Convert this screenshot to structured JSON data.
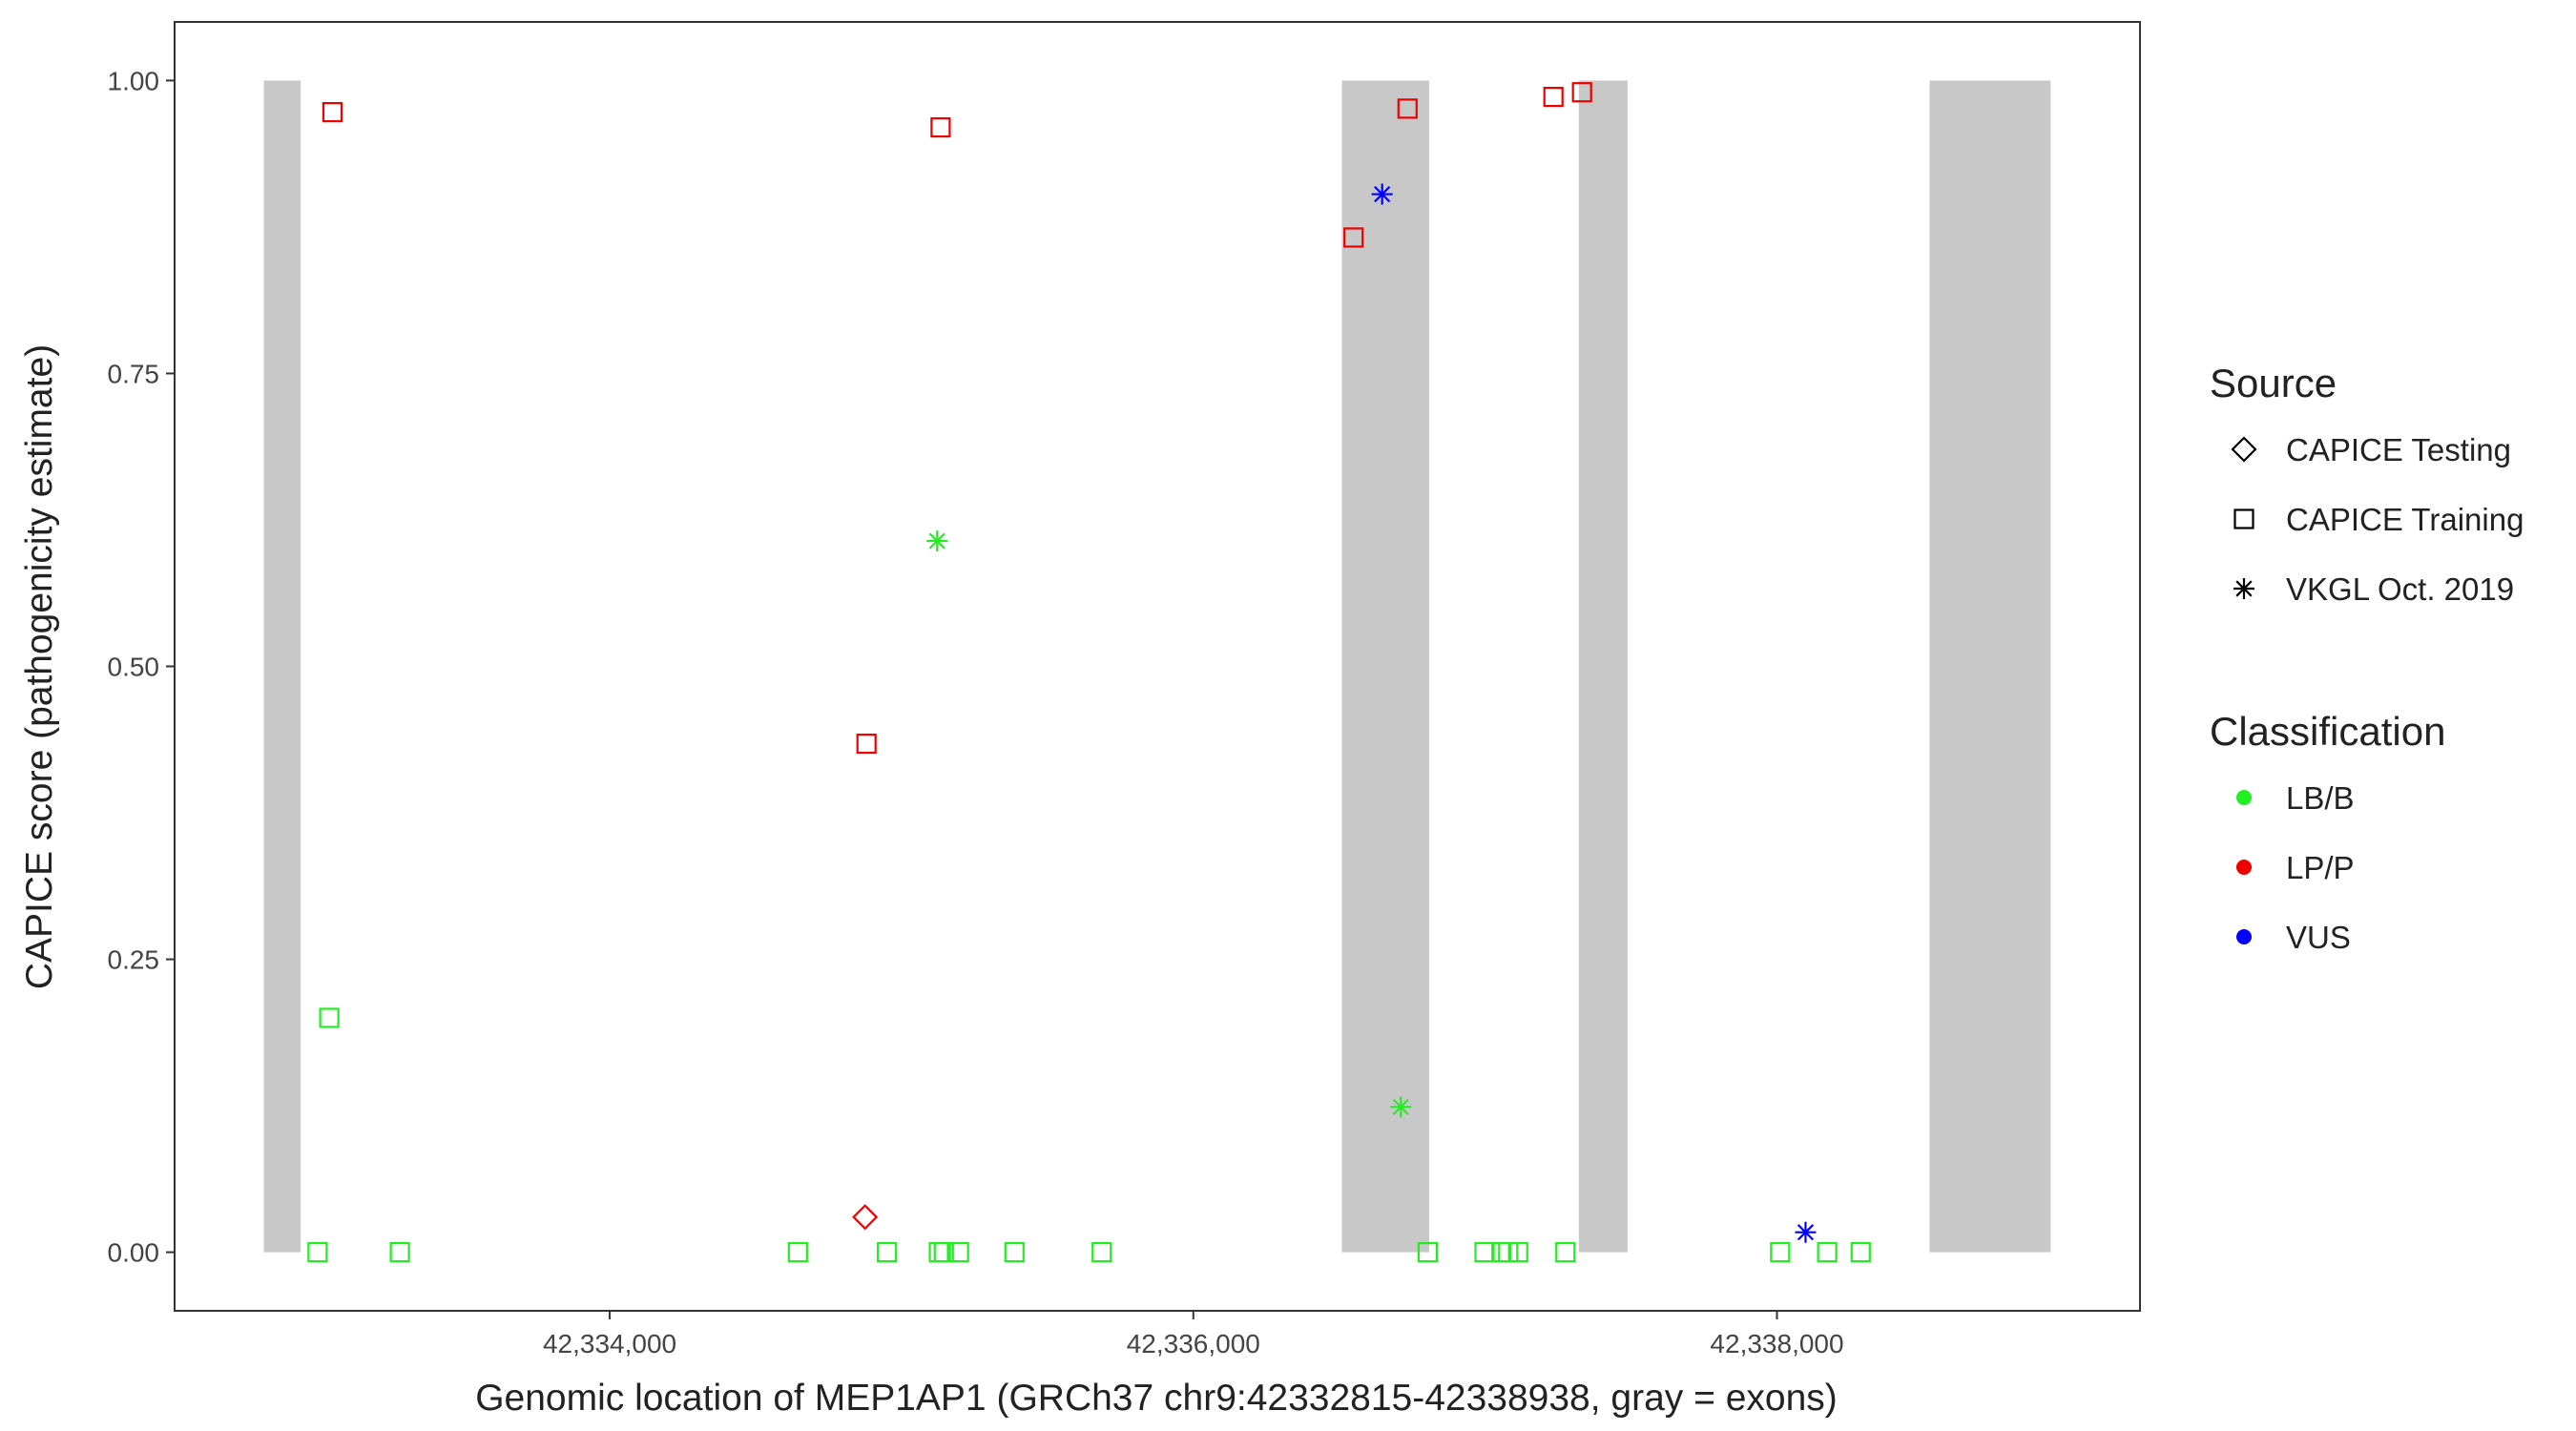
{
  "chart_data": {
    "type": "scatter",
    "x_label": "Genomic location of MEP1AP1 (GRCh37 chr9:42332815-42338938, gray = exons)",
    "y_label": "CAPICE score (pathogenicity estimate)",
    "xlim": [
      42332509,
      42339244
    ],
    "ylim": [
      -0.05,
      1.05
    ],
    "xticks": [
      {
        "value": 42334000,
        "label": "42,334,000"
      },
      {
        "value": 42336000,
        "label": "42,336,000"
      },
      {
        "value": 42338000,
        "label": "42,338,000"
      }
    ],
    "yticks": [
      {
        "value": 0,
        "label": "0.00"
      },
      {
        "value": 0.25,
        "label": "0.25"
      },
      {
        "value": 0.5,
        "label": "0.50"
      },
      {
        "value": 0.75,
        "label": "0.75"
      },
      {
        "value": 1,
        "label": "1.00"
      }
    ],
    "grid": false,
    "exon_color": "#c8c8c8",
    "exon_ylim": [
      0,
      1
    ],
    "exons": [
      {
        "start": 42332815,
        "end": 42332941
      },
      {
        "start": 42336509,
        "end": 42336808
      },
      {
        "start": 42337321,
        "end": 42337488
      },
      {
        "start": 42338523,
        "end": 42338938
      }
    ],
    "source_title": "Source",
    "sources": [
      {
        "name": "CAPICE Testing",
        "shape": "diamond"
      },
      {
        "name": "CAPICE Training",
        "shape": "square"
      },
      {
        "name": "VKGL Oct. 2019",
        "shape": "asterisk"
      }
    ],
    "classification_title": "Classification",
    "classifications": [
      {
        "name": "LB/B",
        "color": "#22ee22"
      },
      {
        "name": "LP/P",
        "color": "#ee0000"
      },
      {
        "name": "VUS",
        "color": "#0000ff"
      }
    ],
    "series": [
      {
        "source": "CAPICE Training",
        "classification": "LP/P",
        "x": [
          42333050,
          42335134,
          42336734,
          42337234,
          42337332,
          42336549,
          42334880
        ],
        "values": [
          0.973,
          0.96,
          0.976,
          0.986,
          0.99,
          0.866,
          0.434
        ]
      },
      {
        "source": "CAPICE Testing",
        "classification": "LP/P",
        "x": [
          42334875
        ],
        "values": [
          0.03
        ]
      },
      {
        "source": "VKGL Oct. 2019",
        "classification": "VUS",
        "x": [
          42336647,
          42338098
        ],
        "values": [
          0.903,
          0.017
        ]
      },
      {
        "source": "VKGL Oct. 2019",
        "classification": "LB/B",
        "x": [
          42335122,
          42336711
        ],
        "values": [
          0.607,
          0.124
        ]
      },
      {
        "source": "CAPICE Training",
        "classification": "LB/B",
        "x": [
          42333039,
          42332999,
          42333281,
          42334645,
          42334950,
          42335128,
          42335145,
          42335197,
          42335387,
          42335686,
          42336803,
          42336998,
          42337056,
          42337079,
          42337113,
          42337275,
          42338011,
          42338172,
          42338287
        ],
        "values": [
          0.2,
          0,
          0,
          0,
          0,
          0,
          0,
          0,
          0,
          0,
          0,
          0,
          0,
          0,
          0,
          0,
          0,
          0,
          0
        ]
      }
    ]
  }
}
